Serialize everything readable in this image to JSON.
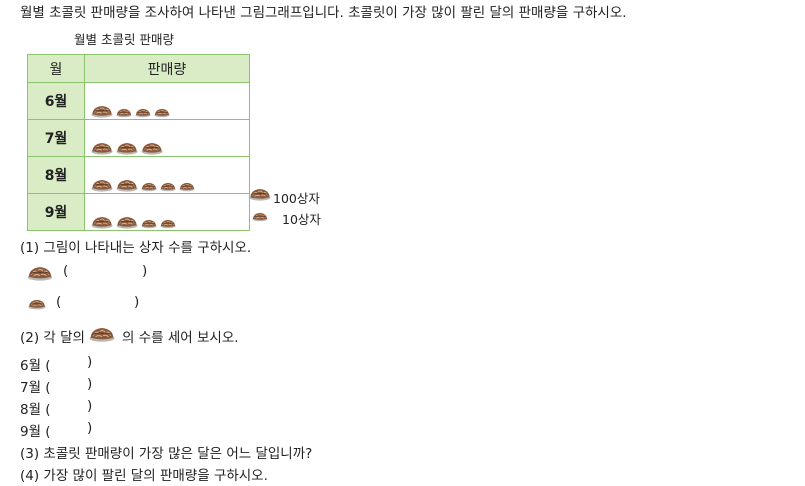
{
  "intro": "월별 초콜릿 판매량을 조사하여 나타낸 그림그래프입니다. 초콜릿이 가장 많이 팔린 달의 판매량을 구하시오.",
  "graph": {
    "title": "월별 초콜릿 판매량",
    "col_month": "월",
    "col_sales": "판매량",
    "rows": [
      {
        "month": "6월",
        "big": 1,
        "small": 3
      },
      {
        "month": "7월",
        "big": 3,
        "small": 0
      },
      {
        "month": "8월",
        "big": 2,
        "small": 3
      },
      {
        "month": "9월",
        "big": 2,
        "small": 2
      }
    ],
    "legend": {
      "big": "100상자",
      "small": "10상자"
    }
  },
  "q1": {
    "text": "(1) 그림이 나타내는 상자 수를 구하시오.",
    "open": "(",
    "close": ")"
  },
  "q2": {
    "text_before": "(2) 각 달의",
    "text_after": "의 수를 세어 보시오.",
    "lines": [
      "6월 (",
      "7월 (",
      "8월 (",
      "9월 ("
    ],
    "close": ")"
  },
  "q3": "(3) 초콜릿 판매량이 가장 많은 달은 어느 달입니까?",
  "q4": "(4) 가장 많이 팔린 달의 판매량을 구하시오.",
  "colors": {
    "border": "#8cc46e",
    "header_bg": "#d9ecc6",
    "choc": "#8b5a3c"
  }
}
